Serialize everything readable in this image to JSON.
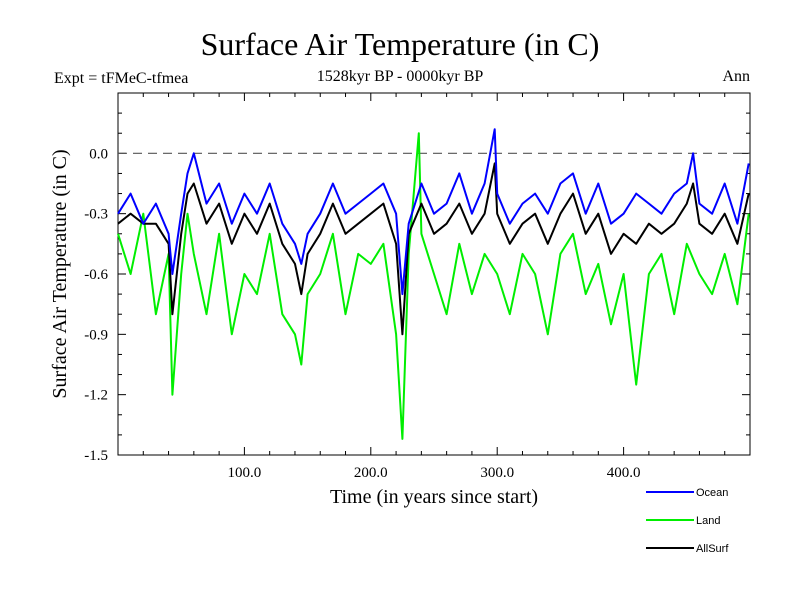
{
  "header": {
    "title": "Surface Air Temperature (in C)",
    "expt": "Expt = tFMeC-tfmea",
    "range": "1528kyr BP - 0000kyr BP",
    "season": "Ann"
  },
  "chart_data": {
    "type": "line",
    "title": "Surface Air Temperature (in C)",
    "xlabel": "Time (in years since start)",
    "ylabel": "Surface Air Temperature (in C)",
    "xlim": [
      0,
      500
    ],
    "ylim": [
      -1.5,
      0.3
    ],
    "xticks": [
      100,
      200,
      300,
      400
    ],
    "xtick_labels": [
      "100.0",
      "200.0",
      "300.0",
      "400.0"
    ],
    "yticks": [
      0.0,
      -0.3,
      -0.6,
      -0.9,
      -1.2,
      -1.5
    ],
    "ytick_labels": [
      "0.0",
      "-0.3",
      "-0.6",
      "-0.9",
      "-1.2",
      "-1.5"
    ],
    "reference_line": 0.0,
    "legend_position": "bottom-right, outside plot",
    "series": [
      {
        "name": "Ocean",
        "color": "#0000ff",
        "x": [
          0,
          10,
          20,
          30,
          40,
          43,
          50,
          55,
          60,
          70,
          80,
          90,
          100,
          110,
          120,
          130,
          140,
          145,
          150,
          160,
          170,
          180,
          190,
          200,
          210,
          220,
          225,
          230,
          240,
          250,
          260,
          270,
          280,
          290,
          298,
          300,
          310,
          320,
          330,
          340,
          350,
          360,
          370,
          380,
          390,
          400,
          410,
          420,
          430,
          440,
          450,
          455,
          460,
          470,
          480,
          490,
          499
        ],
        "y": [
          -0.3,
          -0.2,
          -0.35,
          -0.25,
          -0.4,
          -0.6,
          -0.3,
          -0.1,
          0.0,
          -0.25,
          -0.15,
          -0.35,
          -0.2,
          -0.3,
          -0.15,
          -0.35,
          -0.45,
          -0.55,
          -0.4,
          -0.3,
          -0.15,
          -0.3,
          -0.25,
          -0.2,
          -0.15,
          -0.3,
          -0.7,
          -0.35,
          -0.15,
          -0.3,
          -0.25,
          -0.1,
          -0.3,
          -0.15,
          0.12,
          -0.2,
          -0.35,
          -0.25,
          -0.2,
          -0.3,
          -0.15,
          -0.1,
          -0.3,
          -0.15,
          -0.35,
          -0.3,
          -0.2,
          -0.25,
          -0.3,
          -0.2,
          -0.15,
          0.0,
          -0.25,
          -0.3,
          -0.15,
          -0.35,
          -0.05
        ]
      },
      {
        "name": "Land",
        "color": "#00ee00",
        "x": [
          0,
          10,
          20,
          30,
          40,
          43,
          50,
          55,
          60,
          70,
          80,
          90,
          100,
          110,
          120,
          130,
          140,
          145,
          150,
          160,
          170,
          180,
          190,
          200,
          210,
          220,
          225,
          230,
          238,
          240,
          250,
          260,
          270,
          280,
          290,
          300,
          310,
          320,
          330,
          340,
          350,
          360,
          370,
          380,
          390,
          400,
          410,
          420,
          430,
          440,
          450,
          460,
          470,
          480,
          490,
          499
        ],
        "y": [
          -0.4,
          -0.6,
          -0.3,
          -0.8,
          -0.5,
          -1.2,
          -0.6,
          -0.3,
          -0.5,
          -0.8,
          -0.4,
          -0.9,
          -0.6,
          -0.7,
          -0.4,
          -0.8,
          -0.9,
          -1.05,
          -0.7,
          -0.6,
          -0.4,
          -0.8,
          -0.5,
          -0.55,
          -0.45,
          -0.9,
          -1.42,
          -0.5,
          0.1,
          -0.4,
          -0.6,
          -0.8,
          -0.45,
          -0.7,
          -0.5,
          -0.6,
          -0.8,
          -0.5,
          -0.6,
          -0.9,
          -0.5,
          -0.4,
          -0.7,
          -0.55,
          -0.85,
          -0.6,
          -1.15,
          -0.6,
          -0.5,
          -0.8,
          -0.45,
          -0.6,
          -0.7,
          -0.5,
          -0.75,
          -0.3
        ]
      },
      {
        "name": "AllSurf",
        "color": "#000000",
        "x": [
          0,
          10,
          20,
          30,
          40,
          43,
          50,
          55,
          60,
          70,
          80,
          90,
          100,
          110,
          120,
          130,
          140,
          145,
          150,
          160,
          170,
          180,
          190,
          200,
          210,
          220,
          225,
          230,
          240,
          250,
          260,
          270,
          280,
          290,
          298,
          300,
          310,
          320,
          330,
          340,
          350,
          360,
          370,
          380,
          390,
          400,
          410,
          420,
          430,
          440,
          450,
          455,
          460,
          470,
          480,
          490,
          499
        ],
        "y": [
          -0.35,
          -0.3,
          -0.35,
          -0.35,
          -0.45,
          -0.8,
          -0.4,
          -0.2,
          -0.15,
          -0.35,
          -0.25,
          -0.45,
          -0.3,
          -0.4,
          -0.25,
          -0.45,
          -0.55,
          -0.7,
          -0.5,
          -0.4,
          -0.25,
          -0.4,
          -0.35,
          -0.3,
          -0.25,
          -0.45,
          -0.9,
          -0.4,
          -0.25,
          -0.4,
          -0.35,
          -0.25,
          -0.4,
          -0.3,
          -0.05,
          -0.3,
          -0.45,
          -0.35,
          -0.3,
          -0.45,
          -0.3,
          -0.2,
          -0.4,
          -0.3,
          -0.5,
          -0.4,
          -0.45,
          -0.35,
          -0.4,
          -0.35,
          -0.25,
          -0.15,
          -0.35,
          -0.4,
          -0.3,
          -0.45,
          -0.2
        ]
      }
    ]
  }
}
